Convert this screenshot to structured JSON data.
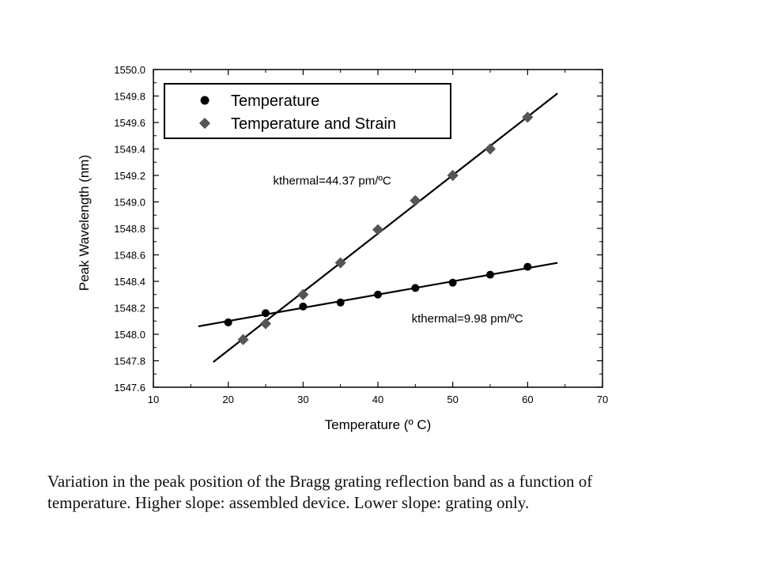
{
  "chart_data": {
    "type": "scatter",
    "xlabel": "Temperature (º C)",
    "ylabel": "Peak Wavelength (nm)",
    "xlim": [
      10,
      70
    ],
    "ylim": [
      1547.6,
      1550.0
    ],
    "x_ticks": [
      "10",
      "20",
      "30",
      "40",
      "50",
      "60",
      "70"
    ],
    "y_ticks": [
      "1547.6",
      "1547.8",
      "1548.0",
      "1548.2",
      "1548.4",
      "1548.6",
      "1548.8",
      "1549.0",
      "1549.2",
      "1549.4",
      "1549.6",
      "1549.8",
      "1550.0"
    ],
    "grid": false,
    "legend_position": "top-left",
    "series": [
      {
        "name": "Temperature",
        "marker": "circle",
        "color": "#000000",
        "x": [
          20,
          25,
          30,
          35,
          40,
          45,
          50,
          55,
          60
        ],
        "y": [
          1548.09,
          1548.16,
          1548.21,
          1548.24,
          1548.3,
          1548.35,
          1548.39,
          1548.45,
          1548.51
        ]
      },
      {
        "name": "Temperature and Strain",
        "marker": "diamond",
        "color": "#555555",
        "x": [
          22,
          25,
          30,
          35,
          40,
          45,
          50,
          55,
          60
        ],
        "y": [
          1547.96,
          1548.08,
          1548.3,
          1548.54,
          1548.79,
          1549.01,
          1549.2,
          1549.4,
          1549.64
        ]
      }
    ],
    "fit_lines": [
      {
        "x": [
          16,
          64
        ],
        "y": [
          1548.06,
          1548.54
        ]
      },
      {
        "x": [
          18,
          64
        ],
        "y": [
          1547.79,
          1549.82
        ]
      }
    ],
    "annotations": [
      {
        "text": "kthermal=44.37 pm/ºC",
        "x": 26,
        "y": 1549.13
      },
      {
        "text": "kthermal=9.98 pm/ºC",
        "x": 44.5,
        "y": 1548.09
      }
    ]
  },
  "caption": {
    "line1": "Variation in the peak position of the Bragg grating reflection band as a function of",
    "line2": "temperature. Higher slope: assembled device. Lower slope: grating only."
  }
}
